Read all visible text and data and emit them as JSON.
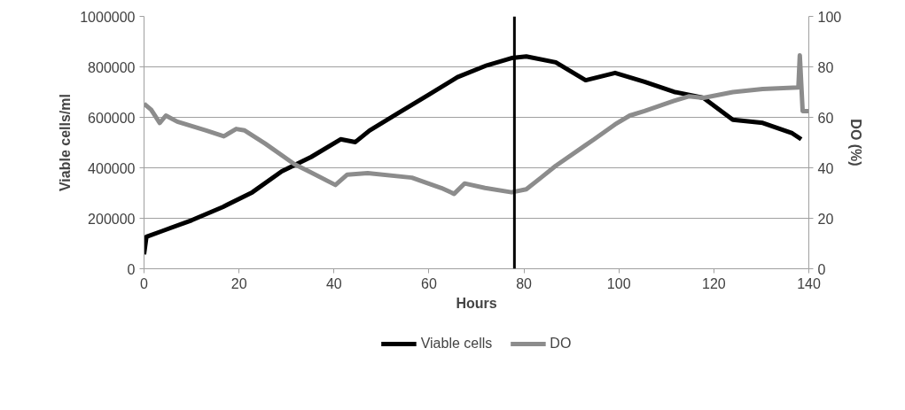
{
  "chart_data": {
    "type": "line",
    "xlabel": "Hours",
    "ylabel": "Viable cells/ml",
    "y2label": "DO (%)",
    "xlim": [
      0,
      140
    ],
    "xticks": [
      0,
      20,
      40,
      60,
      80,
      100,
      120,
      140
    ],
    "ylim": [
      0,
      1000000
    ],
    "yticks": [
      0,
      200000,
      400000,
      600000,
      800000,
      1000000
    ],
    "y2lim": [
      0,
      100
    ],
    "y2ticks": [
      0,
      20,
      40,
      60,
      80,
      100
    ],
    "grid": "y",
    "legend": "bottom",
    "marker": "none",
    "line_style": "solid",
    "ref_lines": [
      {
        "axis": "x",
        "value": 78,
        "label": null,
        "color": "#000000"
      }
    ],
    "series": [
      {
        "name": "Viable cells",
        "color": "#000000",
        "x": [
          0,
          0.5,
          3.9,
          10,
          16.6,
          22.8,
          29,
          35.2,
          41.4,
          44.5,
          47.5,
          53.7,
          59.9,
          66,
          72.2,
          77.4,
          80.5,
          86.7,
          93,
          99.2,
          105.4,
          111.6,
          117.8,
          124,
          130.3,
          136.5,
          138.4
        ],
        "values": [
          57000,
          127000,
          150000,
          192000,
          245000,
          303000,
          386000,
          443000,
          513000,
          502000,
          548000,
          619000,
          689000,
          759000,
          806000,
          835000,
          841000,
          818000,
          747000,
          776000,
          741000,
          701000,
          677000,
          590000,
          578000,
          537000,
          513000
        ]
      },
      {
        "name": "DO",
        "color": "#8c8c8c",
        "axis": "y2",
        "x": [
          0,
          1.5,
          3.3,
          4.6,
          7,
          13.1,
          16.8,
          19.4,
          21.2,
          25.5,
          31.7,
          34.8,
          40.3,
          42.8,
          47.1,
          56.4,
          62.6,
          65.3,
          67.5,
          71.8,
          77.4,
          80.5,
          83.6,
          86.7,
          93,
          94.8,
          99.2,
          102.3,
          105.4,
          111.6,
          114.7,
          117.8,
          124,
          130.3,
          137.8,
          138.1,
          138.7,
          140
        ],
        "values": [
          65.4,
          63,
          57.8,
          60.7,
          58.3,
          54.8,
          52.5,
          55.4,
          54.8,
          49.6,
          41.4,
          38.5,
          33.2,
          37.3,
          37.9,
          36.1,
          32,
          29.7,
          33.8,
          32,
          30.3,
          31.5,
          36.1,
          40.8,
          49,
          51.3,
          57.2,
          60.7,
          62.5,
          66.5,
          68.3,
          67.7,
          70,
          71.2,
          71.8,
          84.6,
          62.5,
          62.5
        ]
      }
    ]
  }
}
